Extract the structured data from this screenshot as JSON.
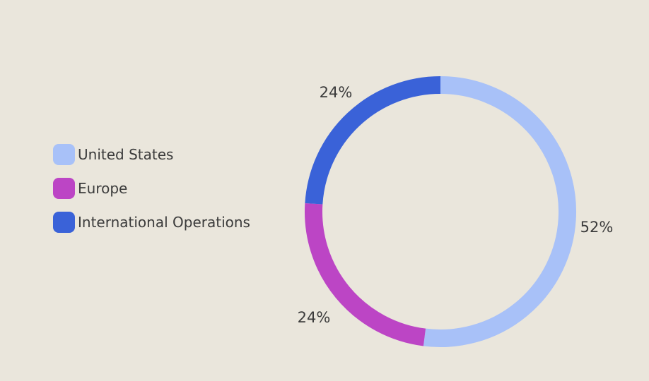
{
  "page": {
    "background_color": "#EAE6DC",
    "text_color": "#3B3B3B"
  },
  "legend": {
    "position": "left",
    "items": [
      {
        "label": "United States",
        "color": "#A8C1F8"
      },
      {
        "label": "Europe",
        "color": "#BC45C5"
      },
      {
        "label": "International Operations",
        "color": "#3A62D8"
      }
    ]
  },
  "chart_data": {
    "type": "pie",
    "subtype": "donut",
    "title": "",
    "categories": [
      "United States",
      "Europe",
      "International Operations"
    ],
    "values": [
      52,
      24,
      24
    ],
    "unit": "%",
    "data_labels": [
      "52%",
      "24%",
      "24%"
    ],
    "colors": [
      "#A8C1F8",
      "#BC45C5",
      "#3A62D8"
    ],
    "start_angle_deg": 0,
    "direction": "clockwise",
    "legend_position": "left",
    "label_color": "#3B3B3B",
    "background_color": "#EAE6DC"
  }
}
